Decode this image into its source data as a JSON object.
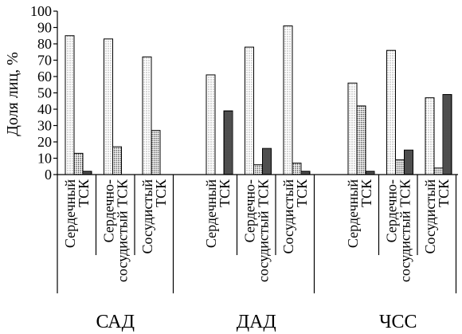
{
  "chart_data": {
    "type": "bar",
    "title": "",
    "ylabel": "Доля лиц, %",
    "xlabel": "",
    "ylim": [
      0,
      100
    ],
    "yticks": [
      0,
      10,
      20,
      30,
      40,
      50,
      60,
      70,
      80,
      90,
      100
    ],
    "grid": false,
    "legend": "none",
    "groups": [
      {
        "label": "САД",
        "subgroups": [
          {
            "label_lines": [
              "Сердечный",
              "ТСК"
            ],
            "values": [
              85,
              13,
              2
            ]
          },
          {
            "label_lines": [
              "Сердечно-",
              "сосудистый ТСК"
            ],
            "values": [
              83,
              17,
              0
            ]
          },
          {
            "label_lines": [
              "Сосудистый",
              "ТСК"
            ],
            "values": [
              72,
              27,
              0
            ]
          }
        ]
      },
      {
        "label": "ДАД",
        "subgroups": [
          {
            "label_lines": [
              "Сердечный",
              "ТСК"
            ],
            "values": [
              61,
              0,
              39
            ]
          },
          {
            "label_lines": [
              "Сердечно-",
              "сосудистый ТСК"
            ],
            "values": [
              78,
              6,
              16
            ]
          },
          {
            "label_lines": [
              "Сосудистый",
              "ТСК"
            ],
            "values": [
              91,
              7,
              2
            ]
          }
        ]
      },
      {
        "label": "ЧСС",
        "subgroups": [
          {
            "label_lines": [
              "Сердечный",
              "ТСК"
            ],
            "values": [
              56,
              42,
              2
            ]
          },
          {
            "label_lines": [
              "Сердечно-",
              "сосудистый ТСК"
            ],
            "values": [
              76,
              9,
              15
            ]
          },
          {
            "label_lines": [
              "Сосудистый",
              "ТСК"
            ],
            "values": [
              47,
              4,
              49
            ]
          }
        ]
      }
    ],
    "series_patterns": [
      "light-dots",
      "medium-dots",
      "dark-dots"
    ]
  }
}
